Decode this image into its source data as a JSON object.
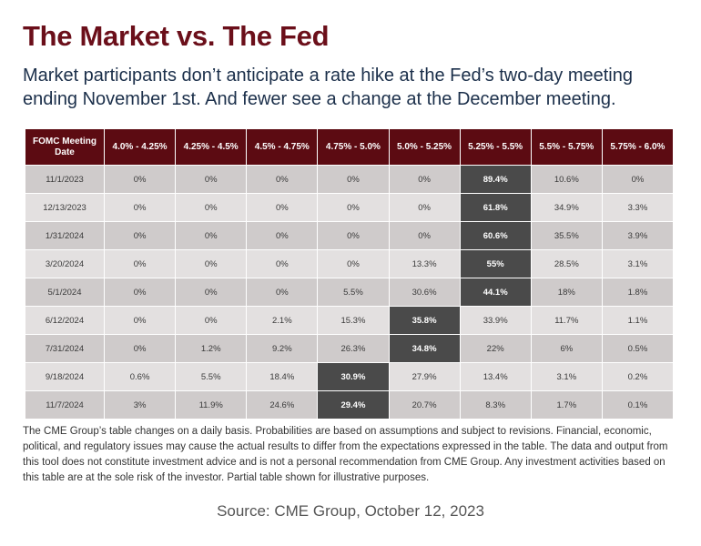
{
  "title": "The Market vs. The Fed",
  "subtitle": "Market participants don’t anticipate a rate hike at the Fed’s two-day meeting ending November 1st. And fewer see a change at the December meeting.",
  "chart_data": {
    "type": "table",
    "columns": [
      "FOMC Meeting Date",
      "4.0% - 4.25%",
      "4.25% - 4.5%",
      "4.5% - 4.75%",
      "4.75% - 5.0%",
      "5.0% - 5.25%",
      "5.25% - 5.5%",
      "5.5% - 5.75%",
      "5.75% - 6.0%"
    ],
    "rows": [
      {
        "date": "11/1/2023",
        "values": [
          "0%",
          "0%",
          "0%",
          "0%",
          "0%",
          "89.4%",
          "10.6%",
          "0%"
        ],
        "highlight": 5
      },
      {
        "date": "12/13/2023",
        "values": [
          "0%",
          "0%",
          "0%",
          "0%",
          "0%",
          "61.8%",
          "34.9%",
          "3.3%"
        ],
        "highlight": 5
      },
      {
        "date": "1/31/2024",
        "values": [
          "0%",
          "0%",
          "0%",
          "0%",
          "0%",
          "60.6%",
          "35.5%",
          "3.9%"
        ],
        "highlight": 5
      },
      {
        "date": "3/20/2024",
        "values": [
          "0%",
          "0%",
          "0%",
          "0%",
          "13.3%",
          "55%",
          "28.5%",
          "3.1%"
        ],
        "highlight": 5
      },
      {
        "date": "5/1/2024",
        "values": [
          "0%",
          "0%",
          "0%",
          "5.5%",
          "30.6%",
          "44.1%",
          "18%",
          "1.8%"
        ],
        "highlight": 5
      },
      {
        "date": "6/12/2024",
        "values": [
          "0%",
          "0%",
          "2.1%",
          "15.3%",
          "35.8%",
          "33.9%",
          "11.7%",
          "1.1%"
        ],
        "highlight": 4
      },
      {
        "date": "7/31/2024",
        "values": [
          "0%",
          "1.2%",
          "9.2%",
          "26.3%",
          "34.8%",
          "22%",
          "6%",
          "0.5%"
        ],
        "highlight": 4
      },
      {
        "date": "9/18/2024",
        "values": [
          "0.6%",
          "5.5%",
          "18.4%",
          "30.9%",
          "27.9%",
          "13.4%",
          "3.1%",
          "0.2%"
        ],
        "highlight": 3
      },
      {
        "date": "11/7/2024",
        "values": [
          "3%",
          "11.9%",
          "24.6%",
          "29.4%",
          "20.7%",
          "8.3%",
          "1.7%",
          "0.1%"
        ],
        "highlight": 3
      }
    ],
    "colors": {
      "header": "#5c0b12",
      "highlight": "#4a4a4a",
      "row_dark": "#cfcbcb",
      "row_light": "#e3e0e0",
      "title": "#6b0f1a"
    }
  },
  "disclaimer": "The CME Group’s table changes on a daily basis. Probabilities are based on assumptions and subject to revisions. Financial, economic, political, and regulatory issues may cause the actual results to differ from the expectations expressed in the table. The data and output from this tool does not constitute investment advice and is not a personal recommendation from CME Group. Any investment activities based on this table are at the sole risk of the investor. Partial table shown for illustrative purposes.",
  "source": "Source: CME Group, October 12, 2023"
}
